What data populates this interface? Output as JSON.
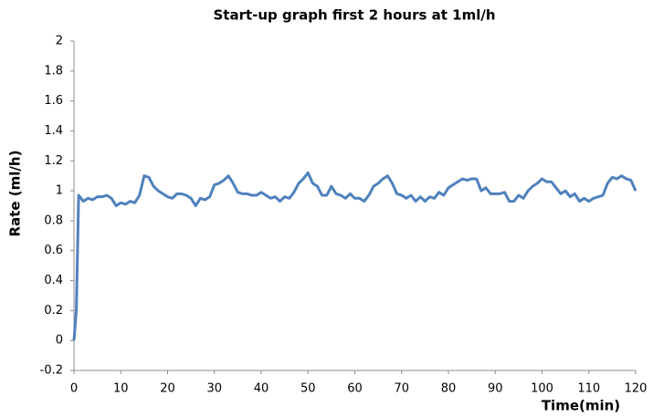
{
  "chart_data": {
    "type": "line",
    "title": "Start-up graph first 2 hours at 1ml/h",
    "x_label": "Time(min)",
    "y_label": "Rate (ml/h)",
    "xlim": [
      0,
      120
    ],
    "xticks": [
      0,
      10,
      20,
      30,
      40,
      50,
      60,
      70,
      80,
      90,
      100,
      110,
      120
    ],
    "ylim": [
      -0.2,
      2
    ],
    "yticks": [
      -0.2,
      0,
      0.2,
      0.4,
      0.6,
      0.8,
      1,
      1.2,
      1.4,
      1.6,
      1.8,
      2
    ],
    "grid": false,
    "x": [
      0,
      0.5,
      1,
      2,
      3,
      4,
      5,
      6,
      7,
      8,
      9,
      10,
      11,
      12,
      13,
      14,
      15,
      16,
      17,
      18,
      19,
      20,
      21,
      22,
      23,
      24,
      25,
      26,
      27,
      28,
      29,
      30,
      31,
      32,
      33,
      34,
      35,
      36,
      37,
      38,
      39,
      40,
      41,
      42,
      43,
      44,
      45,
      46,
      47,
      48,
      49,
      50,
      51,
      52,
      53,
      54,
      55,
      56,
      57,
      58,
      59,
      60,
      61,
      62,
      63,
      64,
      65,
      66,
      67,
      68,
      69,
      70,
      71,
      72,
      73,
      74,
      75,
      76,
      77,
      78,
      79,
      80,
      81,
      82,
      83,
      84,
      85,
      86,
      87,
      88,
      89,
      90,
      91,
      92,
      93,
      94,
      95,
      96,
      97,
      98,
      99,
      100,
      101,
      102,
      103,
      104,
      105,
      106,
      107,
      108,
      109,
      110,
      111,
      112,
      113,
      114,
      115,
      116,
      117,
      118,
      119,
      120
    ],
    "series": [
      {
        "name": "Rate",
        "color": "#4f81bd",
        "values": [
          0,
          0.2,
          0.97,
          0.93,
          0.95,
          0.94,
          0.96,
          0.96,
          0.97,
          0.95,
          0.9,
          0.92,
          0.91,
          0.93,
          0.92,
          0.97,
          1.1,
          1.09,
          1.03,
          1.0,
          0.98,
          0.96,
          0.95,
          0.98,
          0.98,
          0.97,
          0.95,
          0.9,
          0.95,
          0.94,
          0.96,
          1.04,
          1.05,
          1.07,
          1.1,
          1.05,
          0.99,
          0.98,
          0.98,
          0.97,
          0.97,
          0.99,
          0.97,
          0.95,
          0.96,
          0.93,
          0.96,
          0.95,
          0.99,
          1.05,
          1.08,
          1.12,
          1.05,
          1.03,
          0.97,
          0.97,
          1.03,
          0.98,
          0.97,
          0.95,
          0.98,
          0.95,
          0.95,
          0.93,
          0.97,
          1.03,
          1.05,
          1.08,
          1.1,
          1.05,
          0.98,
          0.97,
          0.95,
          0.97,
          0.93,
          0.96,
          0.93,
          0.96,
          0.95,
          0.99,
          0.97,
          1.02,
          1.04,
          1.06,
          1.08,
          1.07,
          1.08,
          1.08,
          1.0,
          1.02,
          0.98,
          0.98,
          0.98,
          0.99,
          0.93,
          0.93,
          0.97,
          0.95,
          1.0,
          1.03,
          1.05,
          1.08,
          1.06,
          1.06,
          1.02,
          0.98,
          1.0,
          0.96,
          0.98,
          0.93,
          0.95,
          0.93,
          0.95,
          0.96,
          0.97,
          1.05,
          1.09,
          1.08,
          1.1,
          1.08,
          1.07,
          1.0
        ]
      }
    ]
  }
}
